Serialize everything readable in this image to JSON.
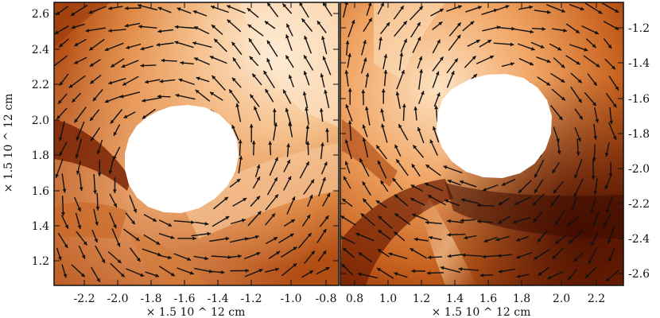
{
  "figure": {
    "left_panel": {
      "x_ticks": [
        "-2.2",
        "-2.0",
        "-1.8",
        "-1.6",
        "-1.4",
        "-1.2",
        "-1.0",
        "-0.8"
      ],
      "y_ticks": [
        "2.6",
        "2.4",
        "2.2",
        "2.0",
        "1.8",
        "1.6",
        "1.4",
        "1.2"
      ],
      "x_axis_title": "× 1.5 10 ^ 12 cm",
      "y_axis_title": "× 1.5 10 ^ 12 cm"
    },
    "right_panel": {
      "x_ticks": [
        "0.8",
        "1.0",
        "1.2",
        "1.4",
        "1.6",
        "1.8",
        "2.0",
        "2.2"
      ],
      "y_ticks": [
        "-1.2",
        "-1.4",
        "-1.6",
        "-1.8",
        "-2.0",
        "-2.2",
        "-2.4",
        "-2.6"
      ],
      "x_axis_title": "× 1.5 10 ^ 12 cm"
    },
    "colors": {
      "dark": "#5a1400",
      "mid": "#d4712e",
      "light": "#f4b57a",
      "pale": "#fff1de",
      "arrow": "#111111",
      "blob": "#ffffff"
    }
  }
}
